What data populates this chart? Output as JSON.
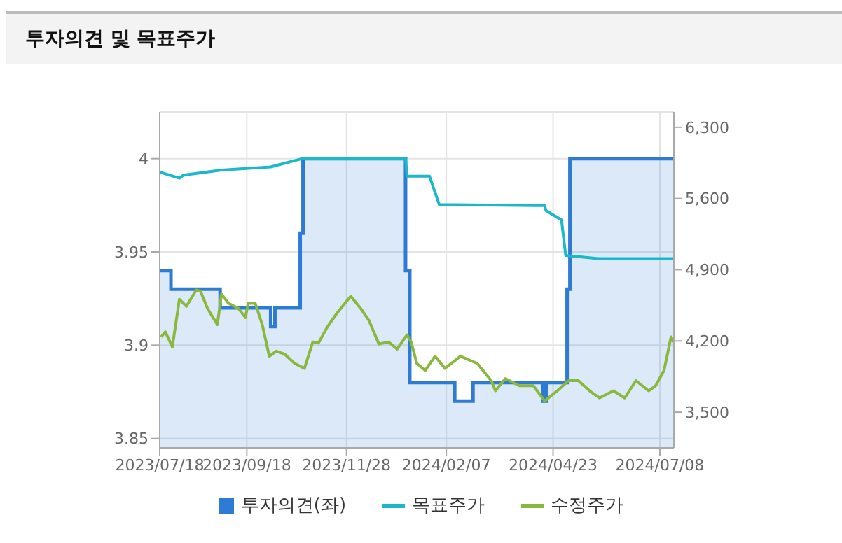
{
  "chart_data": {
    "type": "line",
    "title": "투자의견 및 목표주가",
    "legend": "bottom",
    "grid": true,
    "xlim": [
      "2023-07-18",
      "2024-07-18"
    ],
    "xticks": [
      {
        "value": "2023-07-18",
        "label": "2023/07/18"
      },
      {
        "value": "2023-09-18",
        "label": "2023/09/18"
      },
      {
        "value": "2023-11-28",
        "label": "2023/11/28"
      },
      {
        "value": "2024-02-07",
        "label": "2024/02/07"
      },
      {
        "value": "2024-04-23",
        "label": "2024/04/23"
      },
      {
        "value": "2024-07-08",
        "label": "2024/07/08"
      }
    ],
    "ylim": [
      3.845,
      4.025
    ],
    "yticks": [
      3.85,
      3.9,
      3.95,
      4
    ],
    "y2lim": [
      3150,
      6450
    ],
    "y2ticks": [
      {
        "value": 3500,
        "label": "3,500"
      },
      {
        "value": 4200,
        "label": "4,200"
      },
      {
        "value": 4900,
        "label": "4,900"
      },
      {
        "value": 5600,
        "label": "5,600"
      },
      {
        "value": 6300,
        "label": "6,300"
      }
    ],
    "series": [
      {
        "name": "투자의견(좌)",
        "type": "area",
        "color": "#2e7bd6",
        "x": [
          "2023-07-18",
          "2023-07-26",
          "2023-07-26",
          "2023-08-30",
          "2023-08-30",
          "2023-10-05",
          "2023-10-05",
          "2023-10-08",
          "2023-10-08",
          "2023-10-26",
          "2023-10-26",
          "2023-10-28",
          "2023-10-28",
          "2024-01-09",
          "2024-01-09",
          "2024-01-12",
          "2024-01-12",
          "2024-02-13",
          "2024-02-13",
          "2024-02-26",
          "2024-02-26",
          "2024-04-16",
          "2024-04-16",
          "2024-04-18",
          "2024-04-18",
          "2024-05-03",
          "2024-05-03",
          "2024-05-05",
          "2024-05-05",
          "2024-07-18"
        ],
        "values": [
          3.94,
          3.94,
          3.93,
          3.93,
          3.92,
          3.92,
          3.91,
          3.91,
          3.92,
          3.92,
          3.96,
          3.96,
          4.0,
          4.0,
          3.94,
          3.94,
          3.88,
          3.88,
          3.87,
          3.87,
          3.88,
          3.88,
          3.87,
          3.87,
          3.88,
          3.88,
          3.93,
          3.93,
          4.0,
          4.0
        ]
      },
      {
        "name": "목표주가",
        "axis": "y2",
        "color": "#1bb8c8",
        "x": [
          "2023-07-18",
          "2023-08-01",
          "2023-08-04",
          "2023-08-31",
          "2023-10-05",
          "2023-10-27",
          "2024-01-09",
          "2024-01-10",
          "2024-01-26",
          "2024-02-02",
          "2024-04-17",
          "2024-04-18",
          "2024-04-29",
          "2024-05-02",
          "2024-05-25",
          "2024-07-18"
        ],
        "values": [
          5860,
          5800,
          5830,
          5880,
          5910,
          5990,
          5990,
          5820,
          5820,
          5540,
          5530,
          5480,
          5390,
          5040,
          5010,
          5010
        ]
      },
      {
        "name": "수정주가",
        "axis": "y2",
        "color": "#8ab83e",
        "x": [
          "2023-07-19",
          "2023-07-22",
          "2023-07-27",
          "2023-08-01",
          "2023-08-06",
          "2023-08-13",
          "2023-08-16",
          "2023-08-21",
          "2023-08-28",
          "2023-08-31",
          "2023-09-05",
          "2023-09-12",
          "2023-09-17",
          "2023-09-19",
          "2023-09-24",
          "2023-09-29",
          "2023-10-04",
          "2023-10-09",
          "2023-10-15",
          "2023-10-22",
          "2023-10-29",
          "2023-11-04",
          "2023-11-08",
          "2023-11-14",
          "2023-11-21",
          "2023-12-01",
          "2023-12-08",
          "2023-12-14",
          "2023-12-21",
          "2023-12-28",
          "2024-01-03",
          "2024-01-10",
          "2024-01-13",
          "2024-01-17",
          "2024-01-23",
          "2024-01-30",
          "2024-02-06",
          "2024-02-17",
          "2024-02-29",
          "2024-03-10",
          "2024-03-13",
          "2024-03-20",
          "2024-03-30",
          "2024-04-09",
          "2024-04-17",
          "2024-04-26",
          "2024-05-04",
          "2024-05-11",
          "2024-05-19",
          "2024-05-26",
          "2024-06-05",
          "2024-06-13",
          "2024-06-21",
          "2024-06-30",
          "2024-07-05",
          "2024-07-11",
          "2024-07-16",
          "2024-07-18"
        ],
        "values": [
          4240,
          4290,
          4140,
          4610,
          4540,
          4700,
          4690,
          4520,
          4360,
          4660,
          4570,
          4520,
          4430,
          4570,
          4570,
          4360,
          4050,
          4100,
          4070,
          3980,
          3930,
          4190,
          4180,
          4330,
          4470,
          4640,
          4520,
          4400,
          4170,
          4190,
          4120,
          4260,
          4190,
          3980,
          3910,
          4050,
          3930,
          4050,
          3980,
          3810,
          3710,
          3830,
          3760,
          3760,
          3610,
          3710,
          3810,
          3810,
          3710,
          3640,
          3710,
          3640,
          3810,
          3710,
          3760,
          3910,
          4240,
          4190
        ]
      }
    ]
  }
}
